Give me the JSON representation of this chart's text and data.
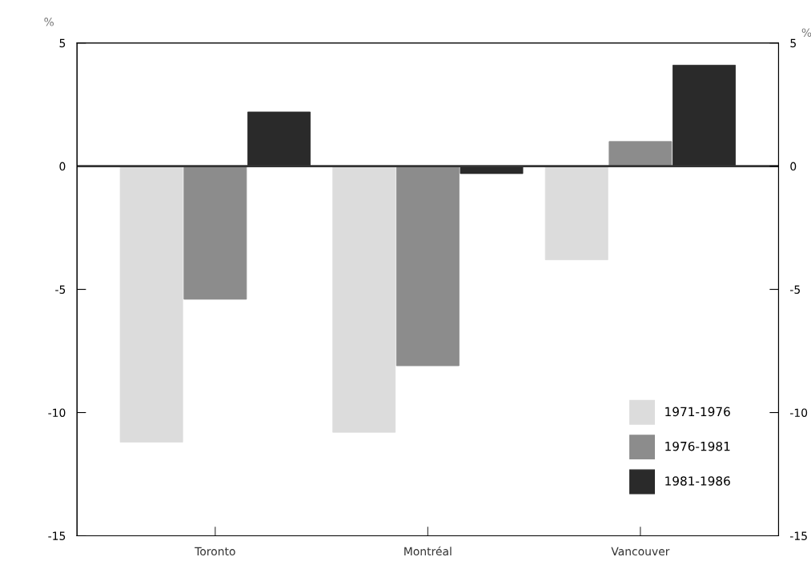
{
  "chart_data": {
    "type": "bar",
    "categories": [
      "Toronto",
      "Montréal",
      "Vancouver"
    ],
    "series": [
      {
        "name": "1971-1976",
        "color": "#dcdcdc",
        "values": [
          -11.2,
          -10.8,
          -3.8
        ]
      },
      {
        "name": "1976-1981",
        "color": "#8c8c8c",
        "values": [
          -5.4,
          -8.1,
          1.0
        ]
      },
      {
        "name": "1981-1986",
        "color": "#2a2a2a",
        "values": [
          2.2,
          -0.3,
          4.1
        ]
      }
    ],
    "ylabel": "%",
    "y2label": "%",
    "ylim": [
      -15,
      5
    ],
    "yticks": [
      -15,
      -10,
      -5,
      0,
      5
    ],
    "y2lim": [
      -15,
      5
    ],
    "y2ticks": [
      -15,
      -10,
      -5,
      0,
      5
    ],
    "ref_lines": [
      {
        "axis": "y",
        "value": 0,
        "color": "#333333"
      }
    ],
    "grid": false,
    "legend": "bottom right"
  }
}
